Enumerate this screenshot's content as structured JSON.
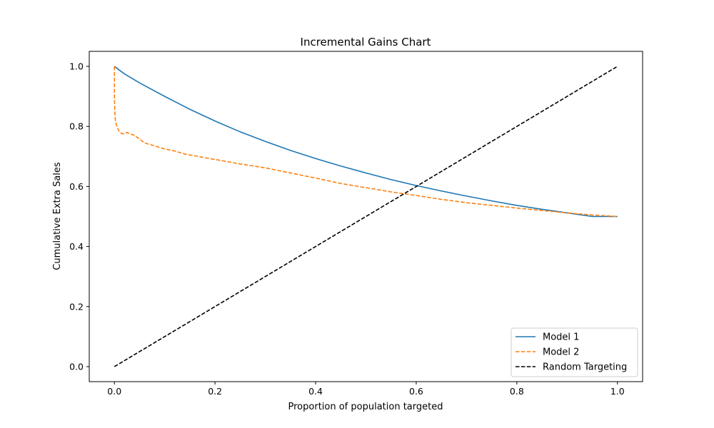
{
  "chart_data": {
    "type": "line",
    "title": "Incremental Gains Chart",
    "xlabel": "Proportion of population targeted",
    "ylabel": "Cumulative Extra Sales",
    "xlim": [
      -0.05,
      1.05
    ],
    "ylim": [
      -0.05,
      1.05
    ],
    "xticks": [
      0.0,
      0.2,
      0.4,
      0.6,
      0.8,
      1.0
    ],
    "yticks": [
      0.0,
      0.2,
      0.4,
      0.6,
      0.8,
      1.0
    ],
    "xtick_labels": [
      "0.0",
      "0.2",
      "0.4",
      "0.6",
      "0.8",
      "1.0"
    ],
    "ytick_labels": [
      "0.0",
      "0.2",
      "0.4",
      "0.6",
      "0.8",
      "1.0"
    ],
    "grid": false,
    "legend_position": "lower-right",
    "series": [
      {
        "name": "Model 1",
        "color": "#1f77b4",
        "dash": "solid",
        "x": [
          0.0,
          0.02,
          0.05,
          0.1,
          0.15,
          0.2,
          0.25,
          0.3,
          0.35,
          0.4,
          0.45,
          0.5,
          0.55,
          0.6,
          0.65,
          0.7,
          0.75,
          0.8,
          0.85,
          0.9,
          0.95,
          1.0
        ],
        "y": [
          1.0,
          0.975,
          0.945,
          0.9,
          0.857,
          0.818,
          0.782,
          0.75,
          0.72,
          0.693,
          0.668,
          0.645,
          0.623,
          0.603,
          0.585,
          0.568,
          0.552,
          0.537,
          0.524,
          0.512,
          0.5,
          0.5
        ]
      },
      {
        "name": "Model 2",
        "color": "#ff7f0e",
        "dash": "dashed",
        "x": [
          0.0,
          0.0,
          0.001,
          0.002,
          0.004,
          0.007,
          0.01,
          0.015,
          0.02,
          0.025,
          0.03,
          0.04,
          0.05,
          0.06,
          0.08,
          0.1,
          0.12,
          0.14,
          0.16,
          0.2,
          0.25,
          0.3,
          0.35,
          0.4,
          0.45,
          0.5,
          0.55,
          0.6,
          0.65,
          0.7,
          0.75,
          0.8,
          0.85,
          0.9,
          0.95,
          1.0
        ],
        "y": [
          1.0,
          0.9,
          0.84,
          0.82,
          0.805,
          0.792,
          0.782,
          0.776,
          0.775,
          0.78,
          0.776,
          0.77,
          0.758,
          0.745,
          0.735,
          0.725,
          0.718,
          0.708,
          0.702,
          0.69,
          0.675,
          0.662,
          0.645,
          0.628,
          0.61,
          0.596,
          0.582,
          0.57,
          0.557,
          0.546,
          0.537,
          0.528,
          0.52,
          0.512,
          0.505,
          0.5
        ]
      },
      {
        "name": "Random Targeting",
        "color": "#000000",
        "dash": "dashed",
        "x": [
          0.0,
          1.0
        ],
        "y": [
          0.0,
          1.0
        ]
      }
    ]
  }
}
